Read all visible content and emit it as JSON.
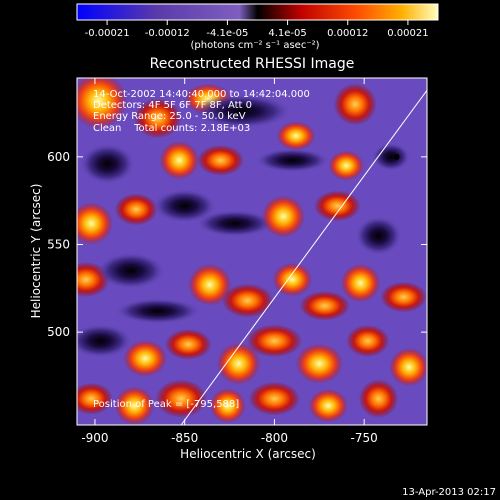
{
  "chart_data": {
    "type": "heatmap",
    "title": "Reconstructed RHESSI Image",
    "xlabel": "Heliocentric X (arcsec)",
    "ylabel": "Heliocentric Y (arcsec)",
    "xlim": [
      -910,
      -715
    ],
    "ylim": [
      447,
      645
    ],
    "xticks": [
      -900,
      -850,
      -800,
      -750
    ],
    "yticks": [
      500,
      550,
      600
    ],
    "colorbar": {
      "ticks": [
        "-0.00021",
        "-0.00012",
        "-4.1e-05",
        "4.1e-05",
        "0.00012",
        "0.00021"
      ],
      "range": [
        -0.00021,
        0.00021
      ],
      "units_label": "(photons cm⁻² s⁻¹ asec⁻²)"
    },
    "annotations": {
      "time_range": "14-Oct-2002 14:40:40.000 to 14:42:04.000",
      "detectors": "Detectors: 4F 5F 6F 7F 8F, Att 0",
      "energy": "Energy Range: 25.0 - 50.0 keV",
      "method": "Clean    Total counts: 2.18E+03",
      "peak": "Position of Peak = [-795,588]"
    },
    "peak_position": [
      -795,
      588
    ],
    "limb_line": [
      [
        -852,
        447
      ],
      [
        -715,
        638
      ]
    ],
    "date_stamp": "13-Apr-2013 02:17",
    "grid": false,
    "blobs": [
      [
        -898,
        632,
        16,
        1.0,
        "x"
      ],
      [
        -865,
        622,
        12,
        1.1,
        "y"
      ],
      [
        -837,
        633,
        10,
        1.3,
        "x"
      ],
      [
        -818,
        626,
        14,
        2.0,
        "n"
      ],
      [
        -788,
        612,
        9,
        1.2,
        "x"
      ],
      [
        -755,
        630,
        12,
        1.0,
        "y"
      ],
      [
        -893,
        596,
        13,
        1.2,
        "n"
      ],
      [
        -853,
        598,
        11,
        1.0,
        "x"
      ],
      [
        -830,
        598,
        10,
        1.3,
        "y"
      ],
      [
        -790,
        598,
        10,
        2.1,
        "n"
      ],
      [
        -760,
        595,
        9,
        1.1,
        "x"
      ],
      [
        -735,
        600,
        9,
        1.2,
        "n"
      ],
      [
        -902,
        562,
        12,
        1.0,
        "x"
      ],
      [
        -877,
        570,
        10,
        1.2,
        "y"
      ],
      [
        -850,
        572,
        12,
        1.5,
        "n"
      ],
      [
        -822,
        562,
        11,
        2.0,
        "n"
      ],
      [
        -795,
        566,
        12,
        1.0,
        "x"
      ],
      [
        -765,
        572,
        10,
        1.3,
        "y"
      ],
      [
        -742,
        555,
        12,
        1.1,
        "n"
      ],
      [
        -905,
        530,
        11,
        1.2,
        "y"
      ],
      [
        -880,
        535,
        13,
        1.5,
        "n"
      ],
      [
        -865,
        512,
        11,
        2.2,
        "n"
      ],
      [
        -836,
        527,
        12,
        1.0,
        "x"
      ],
      [
        -815,
        518,
        11,
        1.3,
        "y"
      ],
      [
        -790,
        530,
        10,
        1.1,
        "x"
      ],
      [
        -772,
        515,
        10,
        1.4,
        "y"
      ],
      [
        -752,
        528,
        11,
        1.0,
        "x"
      ],
      [
        -728,
        520,
        10,
        1.3,
        "y"
      ],
      [
        -897,
        495,
        12,
        1.5,
        "n"
      ],
      [
        -872,
        485,
        11,
        1.1,
        "x"
      ],
      [
        -848,
        493,
        10,
        1.3,
        "y"
      ],
      [
        -820,
        482,
        12,
        1.0,
        "x"
      ],
      [
        -800,
        495,
        11,
        1.4,
        "y"
      ],
      [
        -775,
        482,
        12,
        1.1,
        "x"
      ],
      [
        -748,
        495,
        10,
        1.2,
        "y"
      ],
      [
        -725,
        480,
        11,
        1.0,
        "x"
      ],
      [
        -902,
        462,
        10,
        1.2,
        "y"
      ],
      [
        -878,
        458,
        11,
        1.0,
        "x"
      ],
      [
        -852,
        462,
        12,
        1.2,
        "y"
      ],
      [
        -826,
        458,
        10,
        1.0,
        "x"
      ],
      [
        -800,
        462,
        11,
        1.3,
        "y"
      ],
      [
        -770,
        458,
        10,
        1.1,
        "x"
      ],
      [
        -742,
        462,
        11,
        1.0,
        "y"
      ]
    ]
  },
  "colors": {
    "background": "#000000",
    "text": "#ffffff",
    "colormap": [
      "#0000ff",
      "#5a3aaa",
      "#6a4bbf",
      "#000000",
      "#c00000",
      "#ff4000",
      "#ffa000",
      "#ffff80"
    ]
  }
}
